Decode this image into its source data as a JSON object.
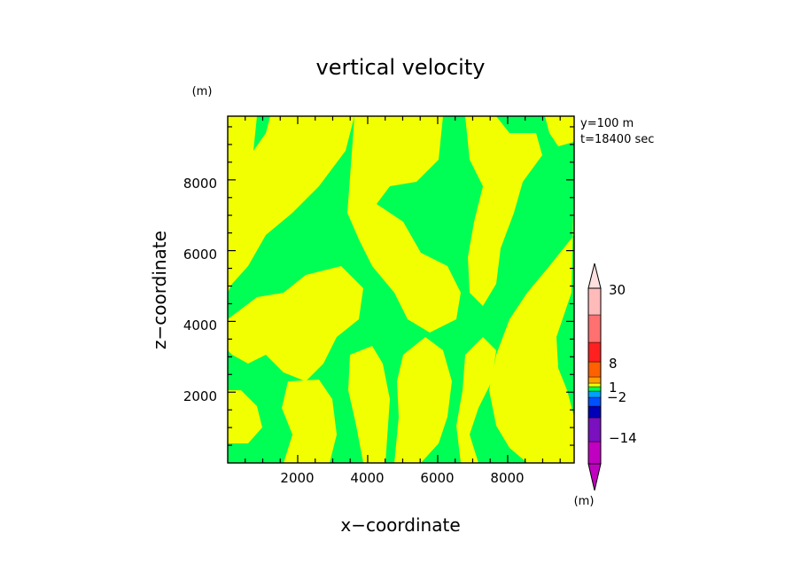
{
  "chart_data": {
    "type": "heatmap",
    "title": "vertical velocity",
    "xlabel": "x−coordinate",
    "ylabel": "z−coordinate",
    "y_unit": "(m)",
    "colorbar_unit": "(m)",
    "xlim": [
      0,
      9900
    ],
    "ylim": [
      0,
      9800
    ],
    "x_ticks": [
      "2000",
      "4000",
      "6000",
      "8000"
    ],
    "y_ticks": [
      "2000",
      "4000",
      "6000",
      "8000"
    ],
    "x_tick_values": [
      2000,
      4000,
      6000,
      8000
    ],
    "y_tick_values": [
      2000,
      4000,
      6000,
      8000
    ],
    "annotations": [
      "y=100 m",
      "t=18400 sec"
    ],
    "grid": false,
    "legend": "colorbar right",
    "colorbar_labels": [
      {
        "label": "30",
        "value": 30
      },
      {
        "label": "8",
        "value": 8
      },
      {
        "label": "1",
        "value": 1
      },
      {
        "label": "−2",
        "value": -2
      },
      {
        "label": "−14",
        "value": -14
      }
    ],
    "colors": {
      "green": "#00ff55",
      "yellow": "#f2ff00"
    },
    "colorbar_bins": [
      "#c000c0",
      "#7a10c0",
      "#0000b8",
      "#0050ff",
      "#00a0ff",
      "#00ff55",
      "#f2ff00",
      "#ffa000",
      "#ff6000",
      "#ff2020",
      "#ff7070",
      "#ffbaba"
    ]
  }
}
